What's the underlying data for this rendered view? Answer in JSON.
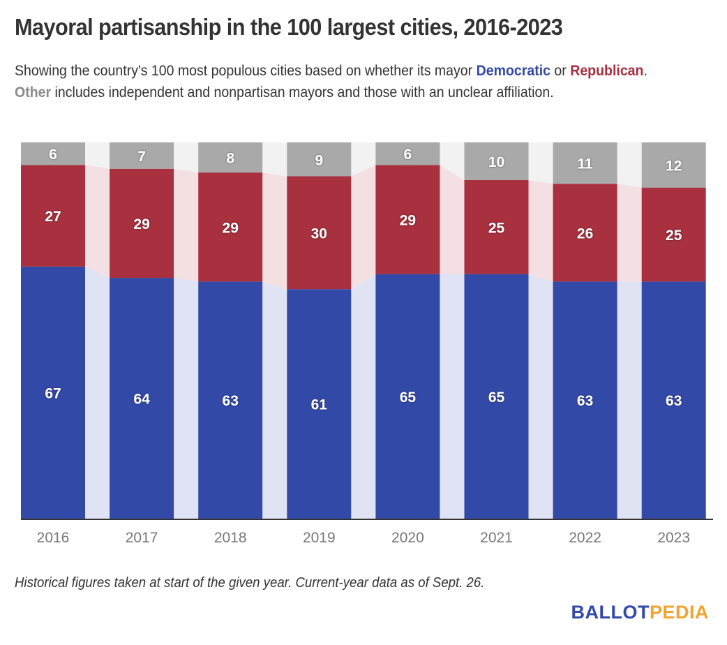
{
  "chart_data": {
    "type": "bar",
    "stacked": true,
    "title": "Mayoral partisanship in the 100 largest cities, 2016-2023",
    "subtitle_parts": {
      "pre": "Showing the country's 100 most populous cities based on whether its mayor ",
      "dem": "Democratic",
      "mid": " or ",
      "rep": "Republican",
      "dot": ". ",
      "oth": "Other",
      "post": " includes independent and nonpartisan mayors and those with an unclear affiliation."
    },
    "categories": [
      "2016",
      "2017",
      "2018",
      "2019",
      "2020",
      "2021",
      "2022",
      "2023"
    ],
    "series": [
      {
        "name": "Democratic",
        "color": "#3349a8",
        "connector_color": "#e0e3f3",
        "values": [
          67,
          64,
          63,
          61,
          65,
          65,
          63,
          63
        ]
      },
      {
        "name": "Republican",
        "color": "#a8303f",
        "connector_color": "#f4dfe2",
        "values": [
          27,
          29,
          29,
          30,
          29,
          25,
          26,
          25
        ]
      },
      {
        "name": "Other",
        "color": "#a9a9a9",
        "connector_color": "#f2f2f2",
        "values": [
          6,
          7,
          8,
          9,
          6,
          10,
          11,
          12
        ]
      }
    ],
    "xlabel": "",
    "ylabel": "",
    "ylim": [
      0,
      100
    ],
    "grid": false,
    "legend": "inline-in-subtitle"
  },
  "footnote": "Historical figures taken at start of the given year. Current-year data as of Sept. 26.",
  "logo": {
    "part1": "BALLOT",
    "part2": "PEDIA"
  }
}
